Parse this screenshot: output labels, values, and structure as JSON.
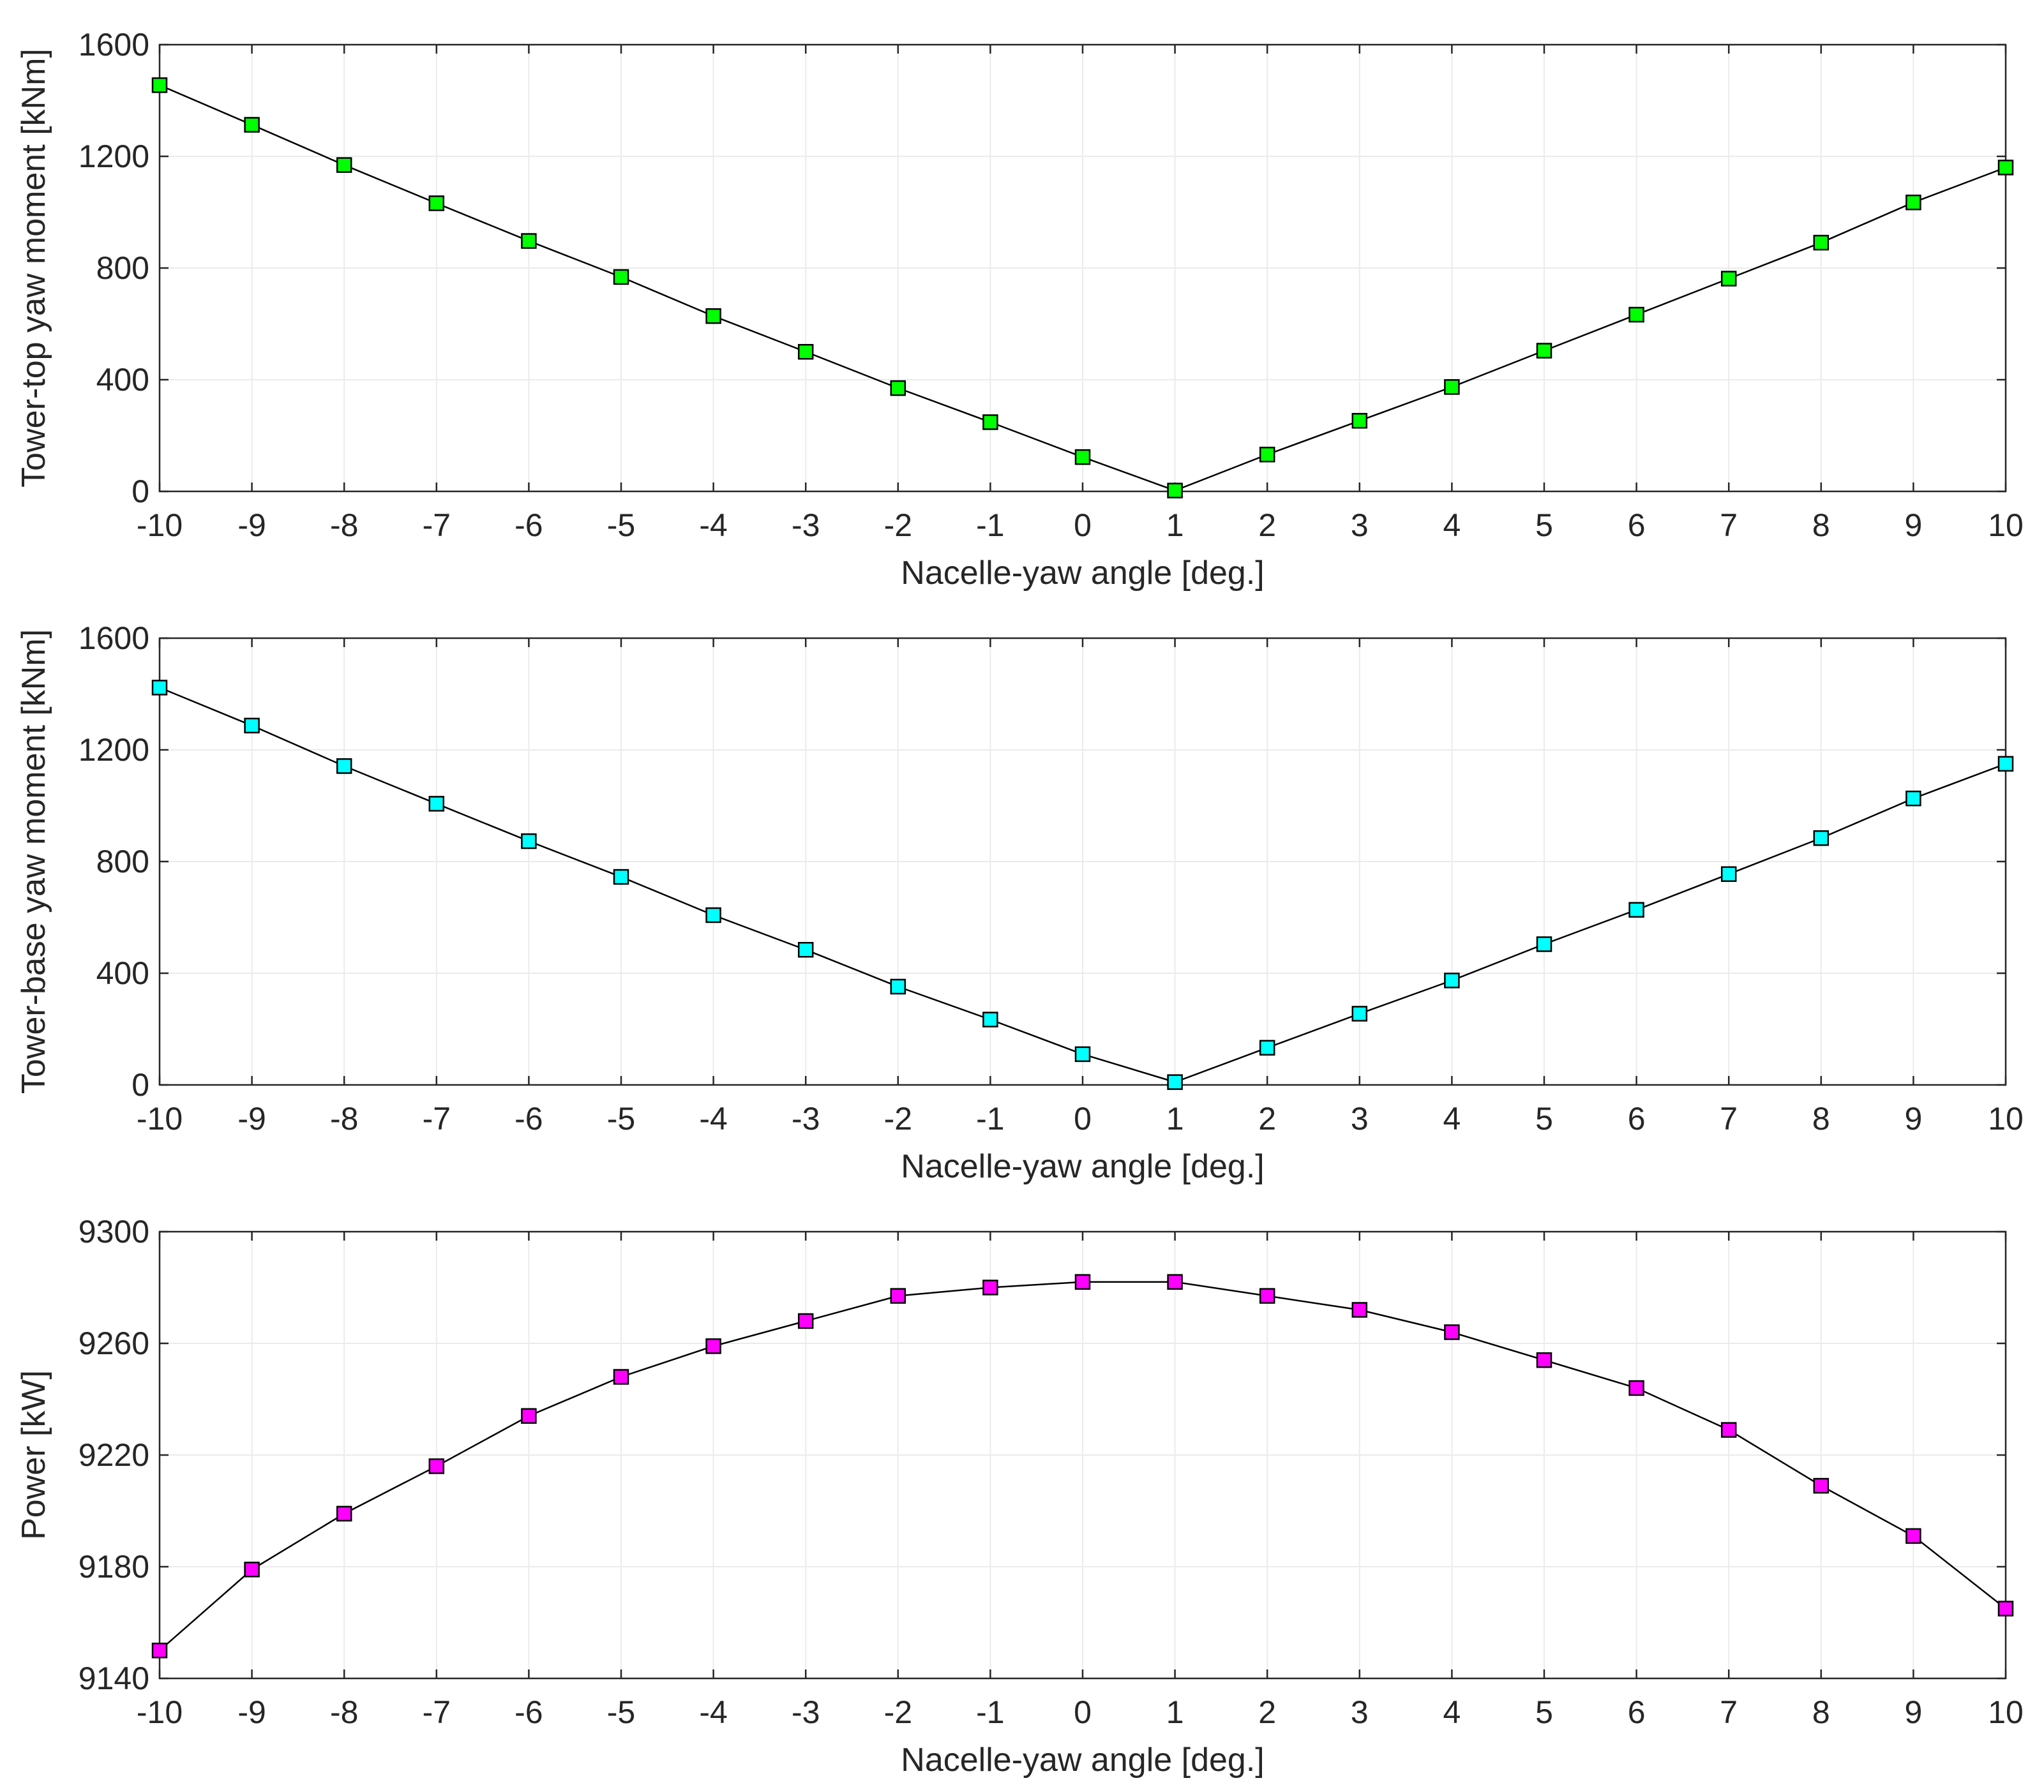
{
  "figure": {
    "background": "#ffffff"
  },
  "chart_data": [
    {
      "type": "line",
      "xlabel": "Nacelle-yaw angle [deg.]",
      "ylabel": "Tower-top yaw moment [kNm]",
      "xlim": [
        -10,
        10
      ],
      "ylim": [
        0,
        1600
      ],
      "xticks": [
        -10,
        -9,
        -8,
        -7,
        -6,
        -5,
        -4,
        -3,
        -2,
        -1,
        0,
        1,
        2,
        3,
        4,
        5,
        6,
        7,
        8,
        9,
        10
      ],
      "yticks": [
        0,
        400,
        800,
        1200,
        1600
      ],
      "grid": true,
      "marker": "square",
      "marker_color": "#00ff00",
      "line_color": "#000000",
      "series": [
        {
          "x": [
            -10,
            -9,
            -8,
            -7,
            -6,
            -5,
            -4,
            -3,
            -2,
            -1,
            0,
            1,
            2,
            3,
            4,
            5,
            6,
            7,
            8,
            9,
            10
          ],
          "y": [
            1455,
            1313,
            1169,
            1032,
            897,
            768,
            628,
            500,
            370,
            248,
            123,
            3,
            132,
            253,
            374,
            504,
            633,
            762,
            891,
            1035,
            1160
          ]
        }
      ]
    },
    {
      "type": "line",
      "xlabel": "Nacelle-yaw angle [deg.]",
      "ylabel": "Tower-base yaw moment [kNm]",
      "xlim": [
        -10,
        10
      ],
      "ylim": [
        0,
        1600
      ],
      "xticks": [
        -10,
        -9,
        -8,
        -7,
        -6,
        -5,
        -4,
        -3,
        -2,
        -1,
        0,
        1,
        2,
        3,
        4,
        5,
        6,
        7,
        8,
        9,
        10
      ],
      "yticks": [
        0,
        400,
        800,
        1200,
        1600
      ],
      "grid": true,
      "marker": "square",
      "marker_color": "#00ffff",
      "line_color": "#000000",
      "series": [
        {
          "x": [
            -10,
            -9,
            -8,
            -7,
            -6,
            -5,
            -4,
            -3,
            -2,
            -1,
            0,
            1,
            2,
            3,
            4,
            5,
            6,
            7,
            8,
            9,
            10
          ],
          "y": [
            1423,
            1287,
            1142,
            1007,
            873,
            745,
            608,
            484,
            352,
            234,
            110,
            10,
            133,
            255,
            374,
            504,
            627,
            755,
            884,
            1026,
            1150
          ]
        }
      ]
    },
    {
      "type": "line",
      "xlabel": "Nacelle-yaw angle [deg.]",
      "ylabel": "Power [kW]",
      "xlim": [
        -10,
        10
      ],
      "ylim": [
        9140,
        9300
      ],
      "xticks": [
        -10,
        -9,
        -8,
        -7,
        -6,
        -5,
        -4,
        -3,
        -2,
        -1,
        0,
        1,
        2,
        3,
        4,
        5,
        6,
        7,
        8,
        9,
        10
      ],
      "yticks": [
        9140,
        9180,
        9220,
        9260,
        9300
      ],
      "grid": true,
      "marker": "square",
      "marker_color": "#ff00ff",
      "line_color": "#000000",
      "series": [
        {
          "x": [
            -10,
            -9,
            -8,
            -7,
            -6,
            -5,
            -4,
            -3,
            -2,
            -1,
            0,
            1,
            2,
            3,
            4,
            5,
            6,
            7,
            8,
            9,
            10
          ],
          "y": [
            9150,
            9179,
            9199,
            9216,
            9234,
            9248,
            9259,
            9268,
            9277,
            9280,
            9282,
            9282,
            9277,
            9272,
            9264,
            9254,
            9244,
            9229,
            9209,
            9191,
            9165
          ]
        }
      ]
    }
  ]
}
